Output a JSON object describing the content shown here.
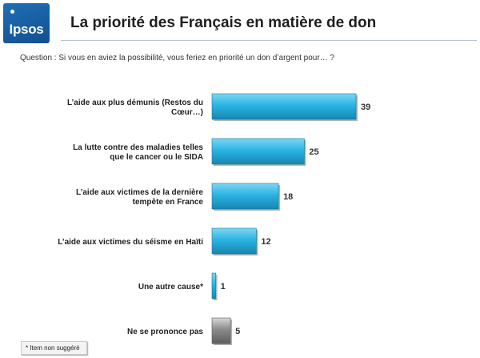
{
  "header": {
    "logo_text": "Ipsos",
    "title": "La priorité des Français en matière de don"
  },
  "question": "Question :  Si vous en aviez la possibilité, vous feriez en priorité un don d’argent pour… ?",
  "footnote": "* Item non suggéré",
  "colors": {
    "bar": "#2ab4e3",
    "bar_grey": "#8a8a8a",
    "brand": "#1a5fa8"
  },
  "chart_data": {
    "type": "bar",
    "orientation": "horizontal",
    "categories": [
      [
        "L’aide aux plus démunis (Restos du",
        "Cœur…)"
      ],
      [
        "La lutte contre des maladies telles",
        "que le cancer ou le SIDA"
      ],
      [
        "L’aide aux victimes de la dernière",
        "tempête en France"
      ],
      [
        "L’aide aux victimes du séisme en Haïti"
      ],
      [
        "Une autre cause*"
      ],
      [
        "Ne se prononce pas"
      ]
    ],
    "values": [
      39,
      25,
      18,
      12,
      1,
      5
    ],
    "highlight": [
      "blue",
      "blue",
      "blue",
      "blue",
      "blue",
      "grey"
    ],
    "xlim": [
      0,
      39
    ]
  }
}
